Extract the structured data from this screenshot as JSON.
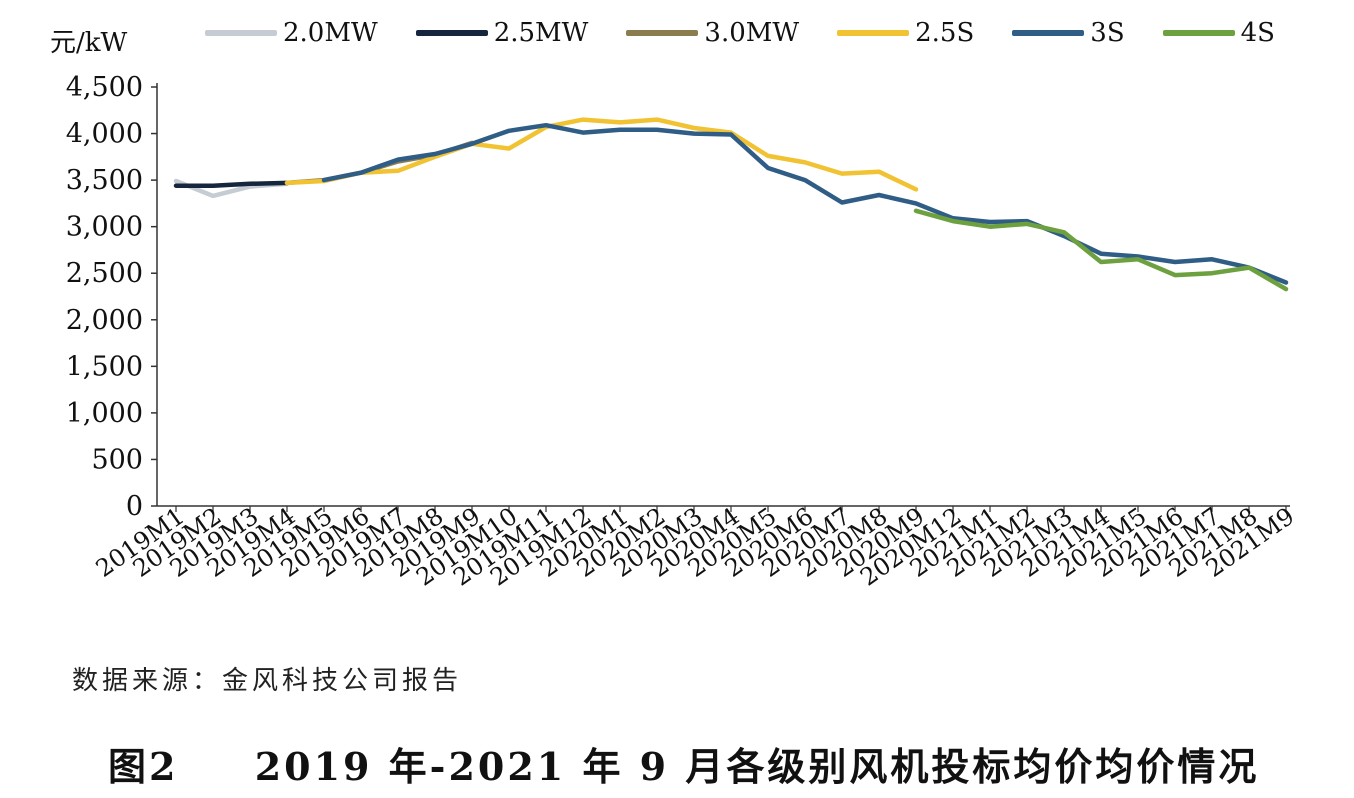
{
  "chart_data": {
    "type": "line",
    "title": "",
    "ylabel": "元/kW",
    "xlabel": "",
    "ylim": [
      0,
      4500
    ],
    "yticks": [
      0,
      500,
      1000,
      1500,
      2000,
      2500,
      3000,
      3500,
      4000,
      4500
    ],
    "ytick_labels": [
      "0",
      "500",
      "1,000",
      "1,500",
      "2,000",
      "2,500",
      "3,000",
      "3,500",
      "4,000",
      "4,500"
    ],
    "grid": false,
    "legend_position": "top",
    "categories": [
      "2019M1",
      "2019M2",
      "2019M3",
      "2019M4",
      "2019M5",
      "2019M6",
      "2019M7",
      "2019M8",
      "2019M9",
      "2019M10",
      "2019M11",
      "2019M12",
      "2020M1",
      "2020M2",
      "2020M3",
      "2020M4",
      "2020M5",
      "2020M6",
      "2020M7",
      "2020M8",
      "2020M9",
      "2020M12",
      "2021M1",
      "2021M2",
      "2021M3",
      "2021M4",
      "2021M5",
      "2021M6",
      "2021M7",
      "2021M8",
      "2021M9"
    ],
    "series": [
      {
        "name": "2.0MW",
        "color": "#c5ccd3",
        "values": [
          3490,
          3330,
          3430,
          3460,
          null,
          null,
          null,
          null,
          null,
          null,
          null,
          null,
          null,
          null,
          null,
          null,
          null,
          null,
          null,
          null,
          null,
          null,
          null,
          null,
          null,
          null,
          null,
          null,
          null,
          null,
          null
        ]
      },
      {
        "name": "2.5MW",
        "color": "#16263c",
        "values": [
          3440,
          3440,
          3460,
          3470,
          null,
          null,
          null,
          null,
          null,
          null,
          null,
          null,
          null,
          null,
          null,
          null,
          null,
          null,
          null,
          null,
          null,
          null,
          null,
          null,
          null,
          null,
          null,
          null,
          null,
          null,
          null
        ]
      },
      {
        "name": "3.0MW",
        "color": "#8b7c50",
        "values": [
          null,
          null,
          null,
          3470,
          3500,
          3580,
          3700,
          3770,
          3900,
          null,
          null,
          null,
          null,
          null,
          null,
          null,
          null,
          null,
          null,
          null,
          null,
          null,
          null,
          null,
          null,
          null,
          null,
          null,
          null,
          null,
          null
        ]
      },
      {
        "name": "2.5S",
        "color": "#f1c232",
        "values": [
          null,
          null,
          null,
          3470,
          3490,
          3580,
          3600,
          3750,
          3890,
          3840,
          4070,
          4150,
          4120,
          4150,
          4060,
          4010,
          3760,
          3690,
          3570,
          3590,
          3400,
          null,
          null,
          null,
          null,
          null,
          null,
          null,
          null,
          null,
          null
        ]
      },
      {
        "name": "3S",
        "color": "#2f5d86",
        "values": [
          null,
          null,
          null,
          null,
          3500,
          3580,
          3720,
          3780,
          3890,
          4030,
          4090,
          4010,
          4040,
          4040,
          4000,
          3990,
          3630,
          3500,
          3260,
          3340,
          3250,
          3090,
          3050,
          3060,
          2900,
          2710,
          2680,
          2620,
          2650,
          2560,
          2400
        ]
      },
      {
        "name": "4S",
        "color": "#6da03e",
        "values": [
          null,
          null,
          null,
          null,
          null,
          null,
          null,
          null,
          null,
          null,
          null,
          null,
          null,
          null,
          null,
          null,
          null,
          null,
          null,
          null,
          3170,
          3060,
          3000,
          3030,
          2940,
          2620,
          2650,
          2480,
          2500,
          2560,
          2330
        ]
      }
    ]
  },
  "source": "数据来源：金风科技公司报告",
  "caption": {
    "figure": "图2",
    "text": "2019 年-2021 年 9 月各级别风机投标均价均价情况"
  }
}
